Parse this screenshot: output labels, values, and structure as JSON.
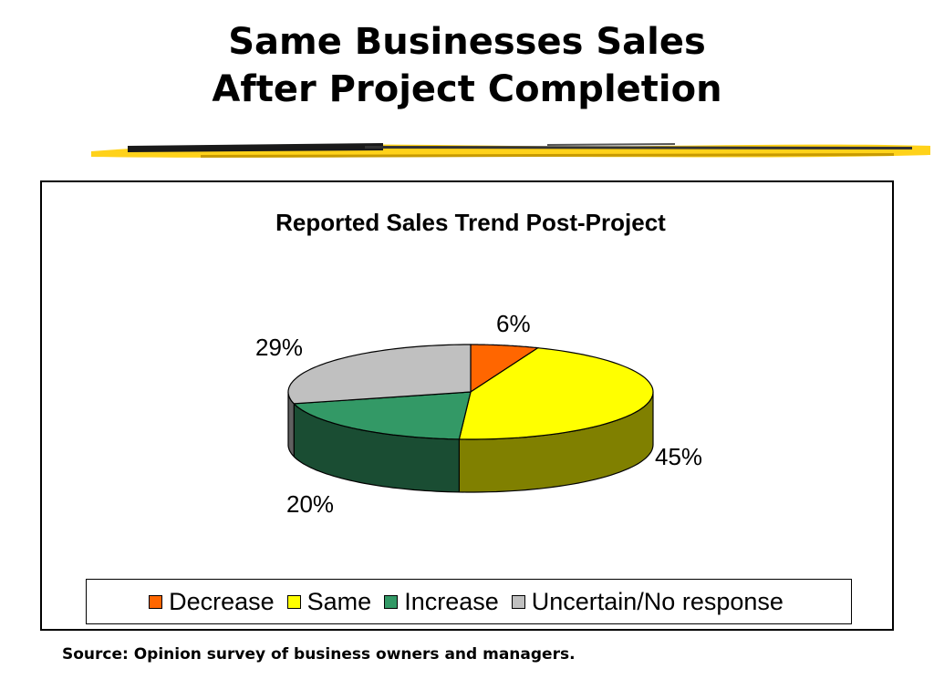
{
  "slide": {
    "title_lines": [
      "Same Businesses Sales",
      "After Project Completion"
    ],
    "source": "Source: Opinion survey of business owners and managers."
  },
  "chart_data": {
    "type": "pie",
    "title": "Reported Sales Trend Post-Project",
    "three_d": true,
    "legend_position": "bottom",
    "slices": [
      {
        "label": "Decrease",
        "value": 6,
        "value_label": "6%",
        "color": "#ff6600",
        "side_color": "#8a3a00"
      },
      {
        "label": "Same",
        "value": 45,
        "value_label": "45%",
        "color": "#ffff00",
        "side_color": "#808000"
      },
      {
        "label": "Increase",
        "value": 20,
        "value_label": "20%",
        "color": "#339966",
        "side_color": "#1a4d33"
      },
      {
        "label": "Uncertain/No response",
        "value": 29,
        "value_label": "29%",
        "color": "#c0c0c0",
        "side_color": "#606060"
      }
    ]
  }
}
